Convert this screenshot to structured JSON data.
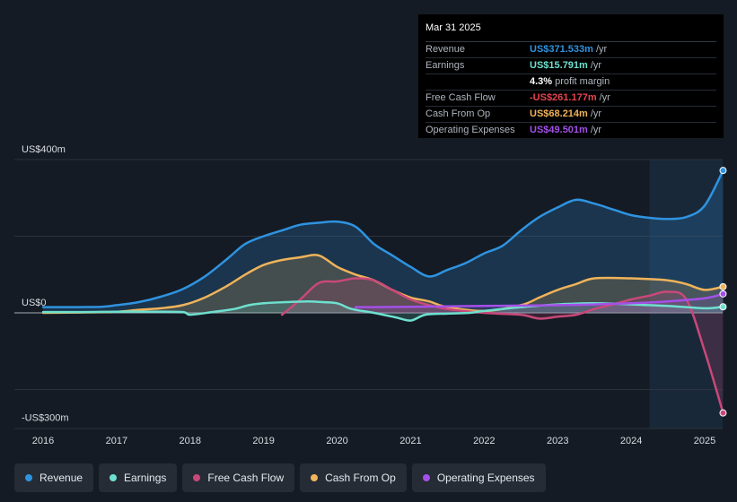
{
  "tooltip": {
    "date": "Mar 31 2025",
    "rows": [
      {
        "label": "Revenue",
        "value": "US$371.533m",
        "unit": "/yr",
        "color": "#2f93e0"
      },
      {
        "label": "Earnings",
        "value": "US$15.791m",
        "unit": "/yr",
        "color": "#6ee0cf"
      },
      {
        "label": "",
        "value": "4.3%",
        "unit": "profit margin",
        "color": "#ffffff"
      },
      {
        "label": "Free Cash Flow",
        "value": "-US$261.177m",
        "unit": "/yr",
        "color": "#e8434e"
      },
      {
        "label": "Cash From Op",
        "value": "US$68.214m",
        "unit": "/yr",
        "color": "#f0b35a"
      },
      {
        "label": "Operating Expenses",
        "value": "US$49.501m",
        "unit": "/yr",
        "color": "#a450e8"
      }
    ]
  },
  "legend": [
    {
      "label": "Revenue",
      "color": "#2f93e0"
    },
    {
      "label": "Earnings",
      "color": "#6ee0cf"
    },
    {
      "label": "Free Cash Flow",
      "color": "#c9487a"
    },
    {
      "label": "Cash From Op",
      "color": "#f0b35a"
    },
    {
      "label": "Operating Expenses",
      "color": "#a450e8"
    }
  ],
  "chart_data": {
    "type": "area",
    "title": "",
    "xlabel": "",
    "ylabel": "",
    "y_tick_labels": [
      "US$400m",
      "US$0",
      "-US$300m"
    ],
    "y_tick_values": [
      400,
      0,
      -300
    ],
    "ylim": [
      -300,
      400
    ],
    "xlim": [
      2015.6,
      2025.3
    ],
    "x_tick_labels": [
      "2016",
      "2017",
      "2018",
      "2019",
      "2020",
      "2021",
      "2022",
      "2023",
      "2024",
      "2025"
    ],
    "x_tick_values": [
      2016,
      2017,
      2018,
      2019,
      2020,
      2021,
      2022,
      2023,
      2024,
      2025
    ],
    "forecast_start": 2024.25,
    "series": [
      {
        "name": "Revenue",
        "color": "#2f93e0",
        "x": [
          2016.0,
          2016.5,
          2016.8,
          2017.0,
          2017.3,
          2017.6,
          2017.9,
          2018.2,
          2018.5,
          2018.75,
          2019.0,
          2019.25,
          2019.5,
          2019.75,
          2020.0,
          2020.25,
          2020.5,
          2020.75,
          2021.0,
          2021.25,
          2021.5,
          2021.75,
          2022.0,
          2022.25,
          2022.5,
          2022.75,
          2023.0,
          2023.25,
          2023.5,
          2023.75,
          2024.0,
          2024.25,
          2024.5,
          2024.75,
          2025.0,
          2025.25
        ],
        "values": [
          15,
          15,
          16,
          20,
          28,
          42,
          62,
          95,
          140,
          180,
          200,
          215,
          230,
          235,
          238,
          225,
          180,
          150,
          120,
          95,
          112,
          130,
          155,
          175,
          215,
          250,
          275,
          295,
          285,
          270,
          255,
          248,
          245,
          250,
          280,
          371.5
        ]
      },
      {
        "name": "Earnings",
        "color": "#6ee0cf",
        "x": [
          2016.0,
          2016.5,
          2017.0,
          2017.5,
          2017.9,
          2018.0,
          2018.3,
          2018.6,
          2018.8,
          2019.0,
          2019.3,
          2019.6,
          2019.8,
          2020.0,
          2020.2,
          2020.5,
          2020.8,
          2021.0,
          2021.2,
          2021.5,
          2021.8,
          2022.0,
          2022.5,
          2023.0,
          2023.5,
          2024.0,
          2024.5,
          2025.0,
          2025.25
        ],
        "values": [
          2,
          2,
          3,
          3,
          2,
          -5,
          2,
          10,
          20,
          25,
          28,
          30,
          28,
          25,
          10,
          0,
          -12,
          -20,
          -5,
          -2,
          0,
          5,
          15,
          22,
          25,
          22,
          18,
          12,
          15.8
        ]
      },
      {
        "name": "Free Cash Flow",
        "color": "#c9487a",
        "x": [
          2019.25,
          2019.5,
          2019.75,
          2020.0,
          2020.25,
          2020.5,
          2020.75,
          2021.0,
          2021.25,
          2021.5,
          2022.0,
          2022.5,
          2022.75,
          2023.0,
          2023.25,
          2023.5,
          2023.75,
          2024.0,
          2024.25,
          2024.5,
          2024.75,
          2025.0,
          2025.25
        ],
        "values": [
          -5,
          35,
          78,
          82,
          90,
          85,
          60,
          35,
          20,
          10,
          0,
          -5,
          -15,
          -10,
          -5,
          10,
          22,
          35,
          45,
          55,
          35,
          -100,
          -261.2
        ]
      },
      {
        "name": "Cash From Op",
        "color": "#f0b35a",
        "x": [
          2016.0,
          2016.5,
          2017.0,
          2017.3,
          2017.6,
          2017.9,
          2018.2,
          2018.5,
          2018.75,
          2019.0,
          2019.25,
          2019.5,
          2019.75,
          2020.0,
          2020.25,
          2020.5,
          2020.75,
          2021.0,
          2021.25,
          2021.5,
          2022.0,
          2022.5,
          2022.75,
          2023.0,
          2023.25,
          2023.5,
          2024.0,
          2024.5,
          2024.75,
          2025.0,
          2025.25
        ],
        "values": [
          0,
          1,
          3,
          8,
          12,
          20,
          40,
          70,
          100,
          125,
          138,
          145,
          150,
          120,
          100,
          85,
          60,
          40,
          30,
          15,
          5,
          20,
          40,
          60,
          75,
          90,
          90,
          85,
          75,
          60,
          68.2
        ]
      },
      {
        "name": "Operating Expenses",
        "color": "#a450e8",
        "x": [
          2020.25,
          2020.5,
          2021.0,
          2021.5,
          2022.0,
          2022.5,
          2023.0,
          2023.5,
          2024.0,
          2024.5,
          2025.0,
          2025.25
        ],
        "values": [
          15,
          15,
          16,
          17,
          18,
          19,
          20,
          22,
          25,
          30,
          38,
          49.5
        ]
      }
    ]
  }
}
